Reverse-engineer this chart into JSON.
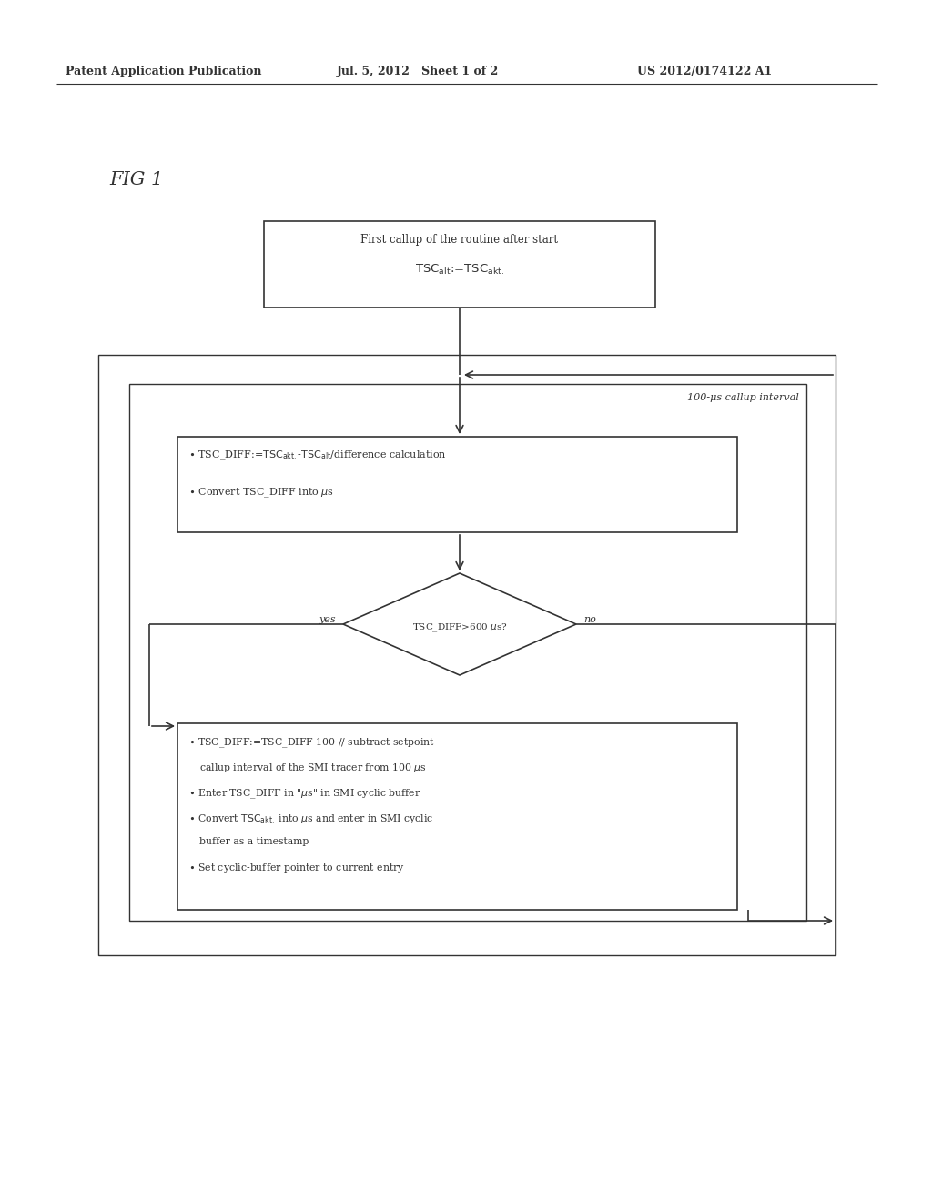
{
  "bg": "#ffffff",
  "lc": "#333333",
  "tc": "#333333",
  "header_left": "Patent Application Publication",
  "header_mid": "Jul. 5, 2012   Sheet 1 of 2",
  "header_right": "US 2012/0174122 A1",
  "fig_label": "FIG 1",
  "loop_label": "100-μs callup interval",
  "yes_label": "yes",
  "no_label": "no"
}
